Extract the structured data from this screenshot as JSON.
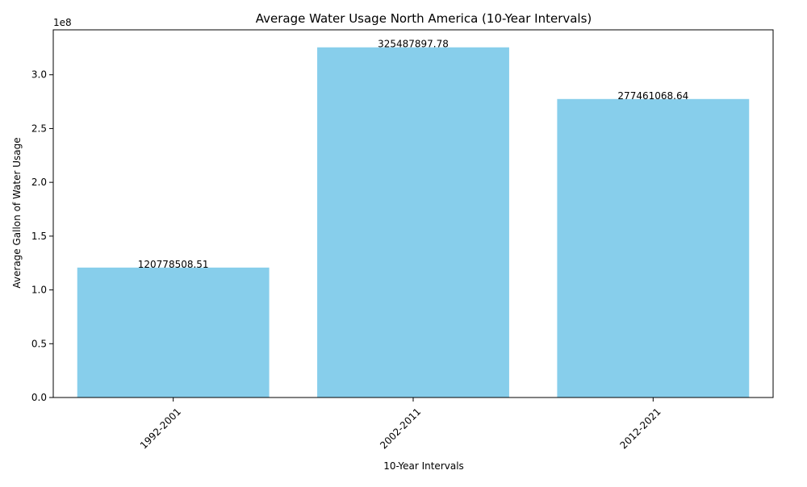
{
  "chart_data": {
    "type": "bar",
    "title": "Average Water Usage North America (10-Year Intervals)",
    "xlabel": "10-Year Intervals",
    "ylabel": "Average Gallon of Water Usage",
    "y_offset_label": "1e8",
    "categories": [
      "1992-2001",
      "2002-2011",
      "2012-2021"
    ],
    "values": [
      120778508.51,
      325487897.78,
      277461068.64
    ],
    "data_labels": [
      "120778508.51",
      "325487897.78",
      "277461068.64"
    ],
    "ylim": [
      0,
      341762292.67
    ],
    "y_ticks": [
      0,
      50000000,
      100000000,
      150000000,
      200000000,
      250000000,
      300000000
    ],
    "y_tick_labels": [
      "0.0",
      "0.5",
      "1.0",
      "1.5",
      "2.0",
      "2.5",
      "3.0"
    ],
    "x_tick_rotation_deg": 45,
    "bar_color": "#87ceeb",
    "grid": false,
    "legend": "none"
  }
}
